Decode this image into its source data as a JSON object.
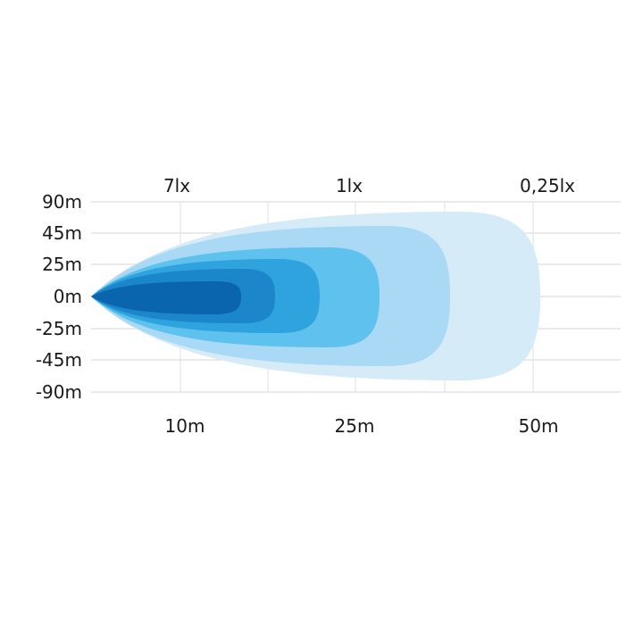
{
  "chart_data": {
    "type": "area",
    "title": "",
    "y_tick_labels": [
      "90m",
      "45m",
      "25m",
      "0m",
      "-25m",
      "-45m",
      "-90m"
    ],
    "x_tick_labels": [
      "10m",
      "25m",
      "50m"
    ],
    "isolux_labels": [
      "7lx",
      "1lx",
      "0,25lx"
    ],
    "grid": true,
    "contour_colors": [
      "#d6ebf8",
      "#a9d9f4",
      "#5fc2ee",
      "#2fa3de",
      "#1b86c9",
      "#0b64ae"
    ]
  }
}
